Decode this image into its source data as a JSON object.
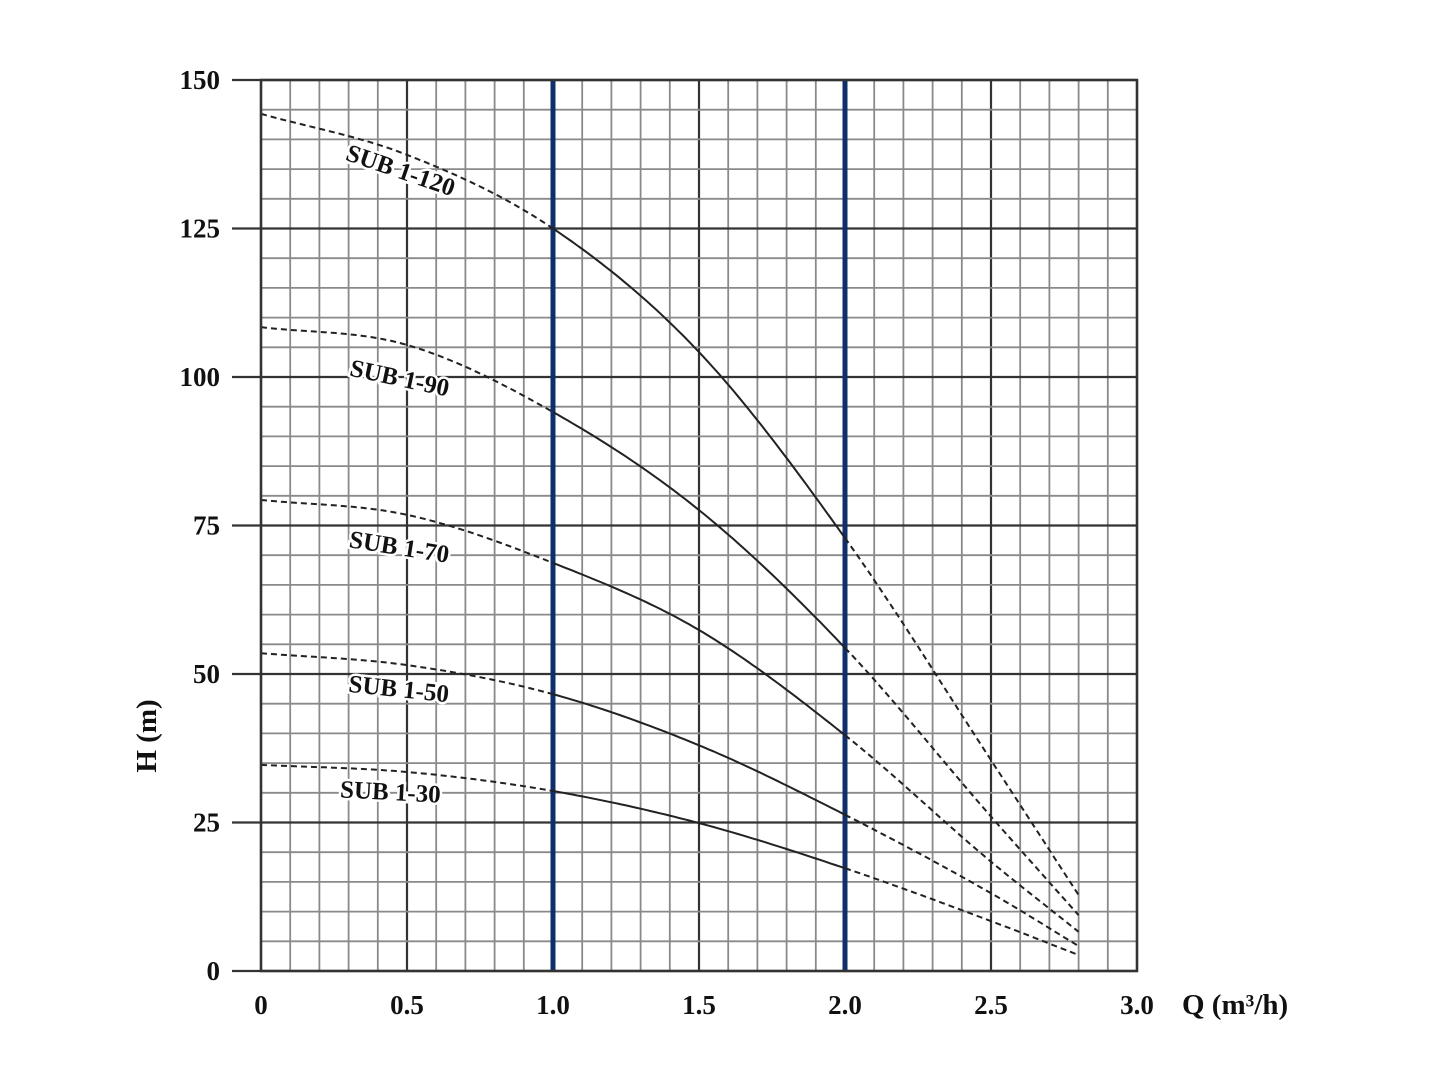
{
  "chart_data": {
    "type": "line",
    "title": "",
    "xlabel": "Q (m³/h)",
    "ylabel": "H (m)",
    "xlim": [
      0,
      3.0
    ],
    "ylim": [
      0,
      150
    ],
    "x_ticks": [
      "0",
      "0.5",
      "1.0",
      "1.5",
      "2.0",
      "2.5",
      "3.0"
    ],
    "y_ticks": [
      "0",
      "25",
      "50",
      "75",
      "100",
      "125",
      "150"
    ],
    "grid": true,
    "grid_minor_x_step": 0.1,
    "grid_minor_y_step": 5,
    "highlight_x": [
      1.0,
      2.0
    ],
    "highlight_color": "#0f2f6b",
    "solid_range": [
      1.0,
      2.0
    ],
    "line_color": "#222222",
    "x": [
      0,
      0.5,
      1.0,
      1.5,
      2.0,
      2.5,
      2.8
    ],
    "series": [
      {
        "name": "SUB 1-120",
        "values": [
          144.3,
          137.4,
          125.0,
          104.2,
          72.9,
          35.5,
          12.8
        ]
      },
      {
        "name": "SUB 1-90",
        "values": [
          108.4,
          105.4,
          94.1,
          77.6,
          54.4,
          26.0,
          9.4
        ]
      },
      {
        "name": "SUB 1-70",
        "values": [
          79.3,
          76.8,
          68.7,
          57.4,
          39.7,
          18.4,
          6.6
        ]
      },
      {
        "name": "SUB 1-50",
        "values": [
          53.5,
          51.5,
          46.6,
          38.0,
          26.3,
          13.1,
          4.2
        ]
      },
      {
        "name": "SUB 1-30",
        "values": [
          34.7,
          33.5,
          30.3,
          24.9,
          17.3,
          8.4,
          2.7
        ]
      }
    ]
  }
}
